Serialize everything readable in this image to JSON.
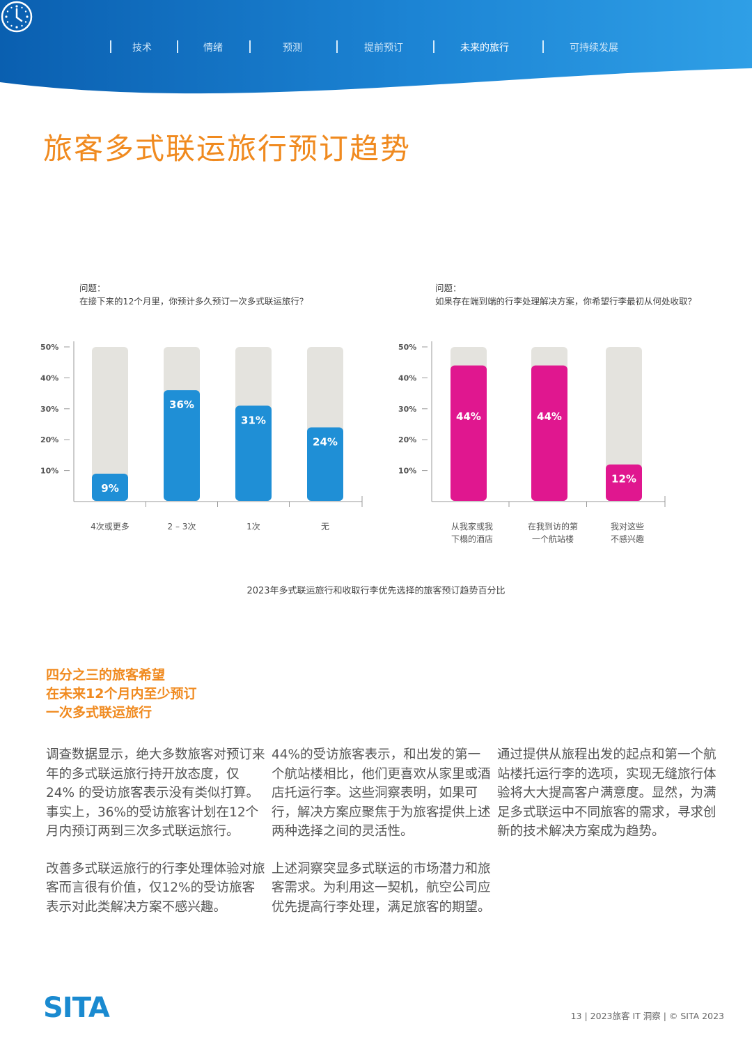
{
  "header": {
    "nav": [
      {
        "label": "技术",
        "active": false
      },
      {
        "label": "情绪",
        "active": false
      },
      {
        "label": "预测",
        "active": false
      },
      {
        "label": "提前预订",
        "active": false
      },
      {
        "label": "未来的旅行",
        "active": true
      },
      {
        "label": "可持续发展",
        "active": false
      }
    ],
    "colors": {
      "dark": "#0a5fb0",
      "light": "#2f9fe6"
    }
  },
  "title": "旅客多式联运旅行预订趋势",
  "chart1": {
    "question_label": "问题：",
    "question": "在接下来的12个月里，你预计多久预订一次多式联运旅行？"
  },
  "chart2": {
    "question_label": "问题：",
    "question": "如果存在端到端的行李处理解决方案，你希望行李最初从何处收取？"
  },
  "chart_data": [
    {
      "type": "bar",
      "categories": [
        "4次或更多",
        "2 – 3次",
        "1次",
        "无"
      ],
      "values": [
        9,
        36,
        31,
        24
      ],
      "value_labels": [
        "9%",
        "36%",
        "31%",
        "24%"
      ],
      "yticks": [
        "10%",
        "20%",
        "30%",
        "40%",
        "50%"
      ],
      "ylim": [
        0,
        50
      ],
      "color": "#1f8fd6",
      "track_color": "#e4e3de"
    },
    {
      "type": "bar",
      "categories": [
        [
          "从我家或我",
          "下榻的酒店"
        ],
        [
          "在我到访的第",
          "一个航站楼"
        ],
        [
          "我对这些",
          "不感兴趣"
        ]
      ],
      "values": [
        44,
        44,
        12
      ],
      "value_labels": [
        "44%",
        "44%",
        "12%"
      ],
      "yticks": [
        "10%",
        "20%",
        "30%",
        "40%",
        "50%"
      ],
      "ylim": [
        0,
        50
      ],
      "color": "#e0178f",
      "track_color": "#e4e3de"
    }
  ],
  "caption": "2023年多式联运旅行和收取行李优先选择的旅客预订趋势百分比",
  "highlight": [
    "四分之三的旅客希望",
    "在未来12个月内至少预订",
    "一次多式联运旅行"
  ],
  "columns": [
    [
      "调查数据显示，绝大多数旅客对预订来年的多式联运旅行持开放态度，仅24% 的受访旅客表示没有类似打算。事实上，36%的受访旅客计划在12个月内预订两到三次多式联运旅行。",
      "改善多式联运旅行的行李处理体验对旅客而言很有价值，仅12%的受访旅客表示对此类解决方案不感兴趣。"
    ],
    [
      "44%的受访旅客表示，和出发的第一个航站楼相比，他们更喜欢从家里或酒店托运行李。这些洞察表明，如果可行，解决方案应聚焦于为旅客提供上述两种选择之间的灵活性。",
      "上述洞察突显多式联运的市场潜力和旅客需求。为利用这一契机，航空公司应优先提高行李处理，满足旅客的期望。"
    ],
    [
      "通过提供从旅程出发的起点和第一个航站楼托运行李的选项，实现无缝旅行体验将大大提高客户满意度。显然，为满足多式联运中不同旅客的需求，寻求创新的技术解决方案成为趋势。"
    ]
  ],
  "logo": "SITA",
  "footer": "13 | 2023旅客 IT 洞察 | © SITA 2023"
}
